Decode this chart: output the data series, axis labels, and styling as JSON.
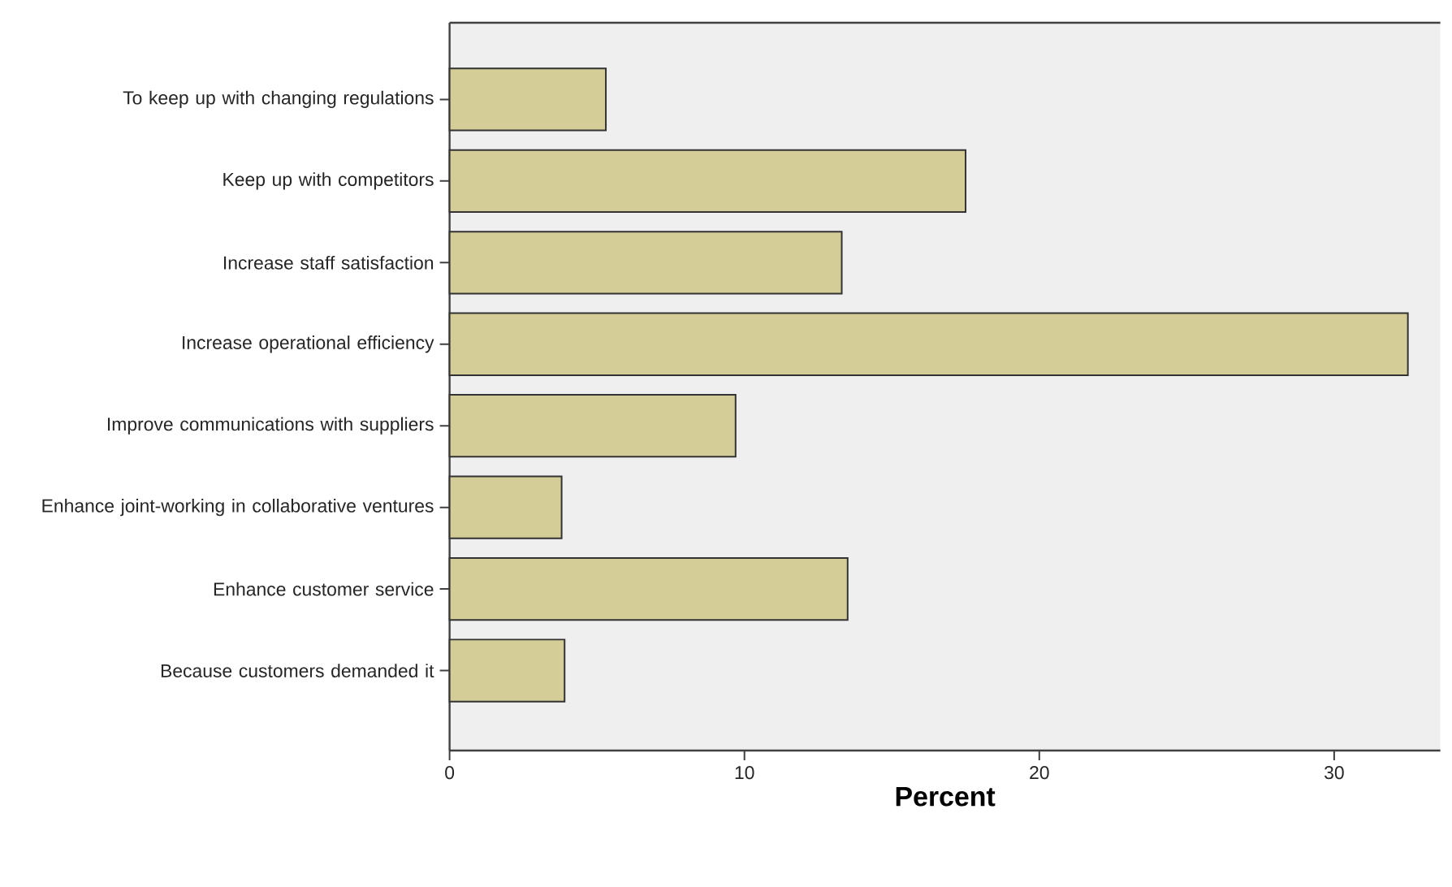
{
  "chart_data": {
    "type": "bar",
    "orientation": "horizontal",
    "categories": [
      "To keep up with changing regulations",
      "Keep up with competitors",
      "Increase staff satisfaction",
      "Increase operational efficiency",
      "Improve communications with suppliers",
      "Enhance joint-working in collaborative ventures",
      "Enhance customer service",
      "Because customers demanded it"
    ],
    "values": [
      5.3,
      17.5,
      13.3,
      32.5,
      9.7,
      3.8,
      13.5,
      3.9
    ],
    "color": "#d4cd98",
    "xlim": [
      0,
      33.6
    ],
    "xticks": [
      0,
      10,
      20,
      30
    ],
    "xlabel": "Percent"
  }
}
